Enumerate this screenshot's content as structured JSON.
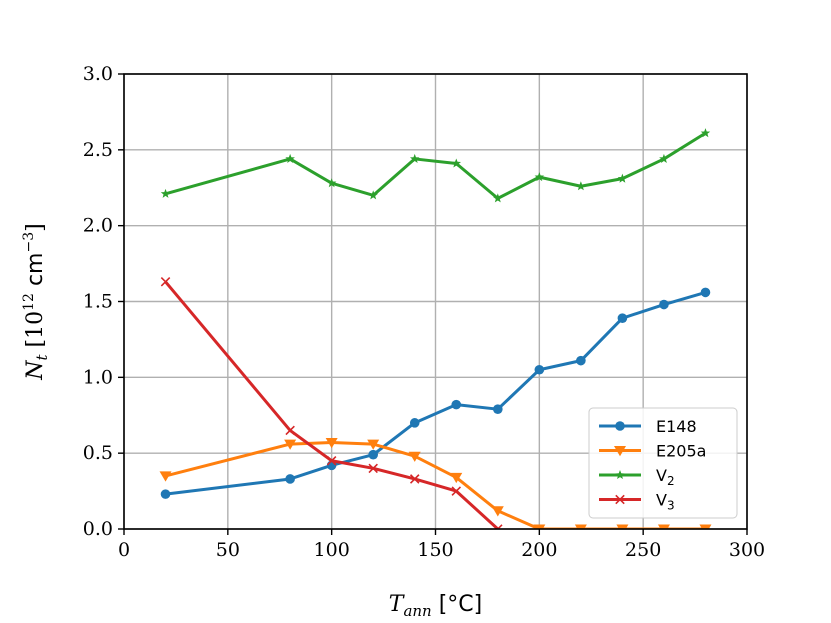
{
  "chart_data": {
    "type": "line",
    "title": "",
    "xlabel": "T_ann [°C]",
    "xlabel_parts": {
      "var": "T",
      "sub": "ann",
      "unit": " [°C]"
    },
    "ylabel": "N_t [10^12 cm^-3]",
    "ylabel_parts": {
      "var": "N",
      "sub": "t",
      "open": " [10",
      "exp": "12",
      "unit": " cm",
      "exp2": "−3",
      "close": "]"
    },
    "xlim": [
      0,
      300
    ],
    "ylim": [
      0,
      3.0
    ],
    "xticks": [
      0,
      50,
      100,
      150,
      200,
      250,
      300
    ],
    "yticks": [
      0.0,
      0.5,
      1.0,
      1.5,
      2.0,
      2.5,
      3.0
    ],
    "xtick_labels": [
      "0",
      "50",
      "100",
      "150",
      "200",
      "250",
      "300"
    ],
    "ytick_labels": [
      "0.0",
      "0.5",
      "1.0",
      "1.5",
      "2.0",
      "2.5",
      "3.0"
    ],
    "grid": true,
    "legend_position": "bottom-right",
    "series": [
      {
        "name": "E148",
        "label_main": "E148",
        "label_sub": "",
        "color": "#1f77b4",
        "marker": "circle",
        "x": [
          20,
          80,
          100,
          120,
          140,
          160,
          180,
          200,
          220,
          240,
          260,
          280
        ],
        "y": [
          0.23,
          0.33,
          0.42,
          0.49,
          0.7,
          0.82,
          0.79,
          1.05,
          1.11,
          1.39,
          1.48,
          1.56
        ]
      },
      {
        "name": "E205a",
        "label_main": "E205a",
        "label_sub": "",
        "color": "#ff7f0e",
        "marker": "triangle-down",
        "x": [
          20,
          80,
          100,
          120,
          140,
          160,
          180,
          200,
          220,
          240,
          260,
          280
        ],
        "y": [
          0.35,
          0.56,
          0.57,
          0.56,
          0.48,
          0.34,
          0.12,
          0.0,
          0.0,
          0.0,
          0.0,
          0.0
        ]
      },
      {
        "name": "V2",
        "label_main": "V",
        "label_sub": "2",
        "color": "#2ca02c",
        "marker": "star",
        "x": [
          20,
          80,
          100,
          120,
          140,
          160,
          180,
          200,
          220,
          240,
          260,
          280
        ],
        "y": [
          2.21,
          2.44,
          2.28,
          2.2,
          2.44,
          2.41,
          2.18,
          2.32,
          2.26,
          2.31,
          2.44,
          2.61
        ]
      },
      {
        "name": "V3",
        "label_main": "V",
        "label_sub": "3",
        "color": "#d62728",
        "marker": "x",
        "x": [
          20,
          80,
          100,
          120,
          140,
          160,
          180
        ],
        "y": [
          1.63,
          0.65,
          0.45,
          0.4,
          0.33,
          0.25,
          0.0
        ]
      }
    ]
  }
}
